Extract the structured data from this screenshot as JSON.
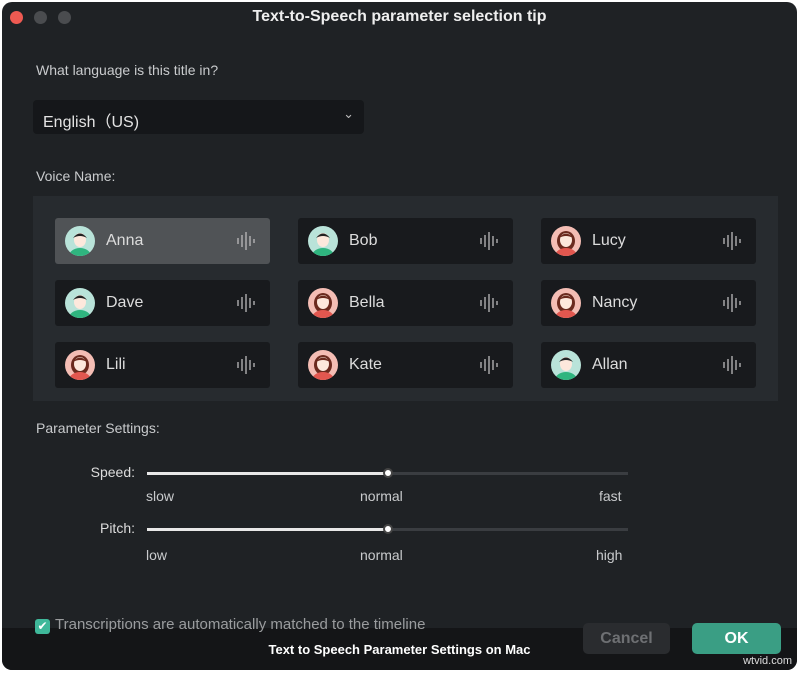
{
  "window": {
    "title": "Text-to-Speech parameter selection tip"
  },
  "language": {
    "label": "What language is this title in?",
    "value": "English（US)"
  },
  "voices": {
    "label": "Voice Name:",
    "selected": "Anna",
    "items": [
      {
        "name": "Anna",
        "gender": "male"
      },
      {
        "name": "Bob",
        "gender": "male"
      },
      {
        "name": "Lucy",
        "gender": "female"
      },
      {
        "name": "Dave",
        "gender": "male"
      },
      {
        "name": "Bella",
        "gender": "female"
      },
      {
        "name": "Nancy",
        "gender": "female"
      },
      {
        "name": "Lili",
        "gender": "female"
      },
      {
        "name": "Kate",
        "gender": "female"
      },
      {
        "name": "Allan",
        "gender": "male"
      }
    ]
  },
  "params": {
    "label": "Parameter Settings:",
    "speed": {
      "label": "Speed:",
      "value_fraction": 0.5,
      "min": "slow",
      "mid": "normal",
      "max": "fast"
    },
    "pitch": {
      "label": "Pitch:",
      "value_fraction": 0.5,
      "min": "low",
      "mid": "normal",
      "max": "high"
    }
  },
  "footer": {
    "checkbox_label": "Transcriptions are automatically matched to the timeline",
    "checked": true,
    "cancel": "Cancel",
    "ok": "OK"
  },
  "caption": "Text to Speech Parameter Settings on Mac",
  "watermark": "wtvid.com",
  "colors": {
    "accent": "#3fb89a",
    "ok_button": "#3a9e84"
  }
}
